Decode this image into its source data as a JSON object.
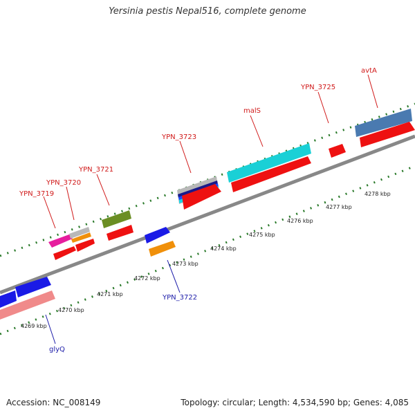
{
  "title": "Yersinia pestis Nepal516, complete genome",
  "footer": {
    "accession": "Accession: NC_008149",
    "stats": "Topology: circular; Length: 4,534,590 bp; Genes: 4,085"
  },
  "colors": {
    "backbone": "#888888",
    "tick_dots": "#2a7a2a",
    "label_top": "#d01818",
    "label_bottom": "#1a1aa8"
  },
  "kbp_ticks": [
    "4269 kbp",
    "4270 kbp",
    "4271 kbp",
    "4272 kbp",
    "4273 kbp",
    "4274 kbp",
    "4275 kbp",
    "4276 kbp",
    "4277 kbp",
    "4278 kbp"
  ],
  "gene_labels_top": [
    "YPN_3719",
    "YPN_3720",
    "YPN_3721",
    "YPN_3723",
    "malS",
    "YPN_3725",
    "avtA"
  ],
  "gene_labels_bottom": [
    "YPN_3722",
    "glyQ"
  ]
}
